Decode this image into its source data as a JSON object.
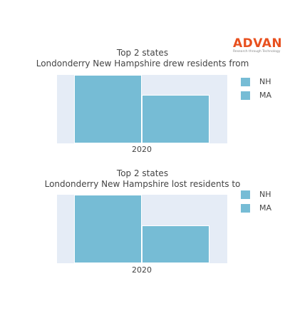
{
  "logo": {
    "word": "ADVAN",
    "tagline": "Research through Technology",
    "color": "#e8501e"
  },
  "chart_data": [
    {
      "type": "bar",
      "title": "Top 2 states",
      "subtitle": "Londonderry New Hampshire drew residents from",
      "categories": [
        "2020"
      ],
      "series": [
        {
          "name": "NH",
          "values": [
            100
          ]
        },
        {
          "name": "MA",
          "values": [
            71
          ]
        }
      ],
      "ylim": [
        0,
        100
      ],
      "bar_color": "#76bcd5",
      "plot_background": "#e5ecf6",
      "legend_position": "right"
    },
    {
      "type": "bar",
      "title": "Top 2 states",
      "subtitle": "Londonderry New Hampshire lost residents to",
      "categories": [
        "2020"
      ],
      "series": [
        {
          "name": "NH",
          "values": [
            100
          ]
        },
        {
          "name": "MA",
          "values": [
            55
          ]
        }
      ],
      "ylim": [
        0,
        100
      ],
      "bar_color": "#76bcd5",
      "plot_background": "#e5ecf6",
      "legend_position": "right"
    }
  ]
}
